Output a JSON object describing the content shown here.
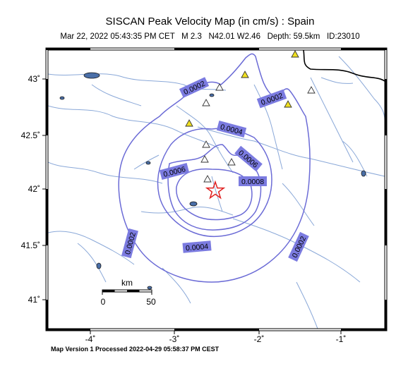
{
  "title": "SISCAN Peak Velocity Map (in cm/s) : Spain",
  "subtitle": "Mar 22, 2022 05:43:35 PM CET   M 2.3   N42.01 W2.46   Depth: 59.5km   ID:23010",
  "footer": "Map Version 1 Processed 2022-04-29 05:58:37 PM CEST",
  "axes": {
    "x_ticks": [
      "-4˚",
      "-3˚",
      "-2˚",
      "-1˚"
    ],
    "y_ticks": [
      "43˚",
      "42.5˚",
      "42˚",
      "41.5˚",
      "41˚"
    ]
  },
  "scale_bar": {
    "unit": "km",
    "start": "0",
    "end": "50"
  },
  "contour_labels": [
    "0.0002",
    "0.0002",
    "0.0004",
    "0.0006",
    "0.0006",
    "0.0008",
    "0.0004",
    "0.0002",
    "0.0002"
  ],
  "epicenter": {
    "icon": "star-icon",
    "color": "#e02020"
  },
  "stations": {
    "icon": "triangle-icon"
  },
  "colors": {
    "contour": "#6b6bd6",
    "label_bg": "#7b7be0",
    "river": "#8aa8d8",
    "station_yellow": "#f0e020"
  }
}
